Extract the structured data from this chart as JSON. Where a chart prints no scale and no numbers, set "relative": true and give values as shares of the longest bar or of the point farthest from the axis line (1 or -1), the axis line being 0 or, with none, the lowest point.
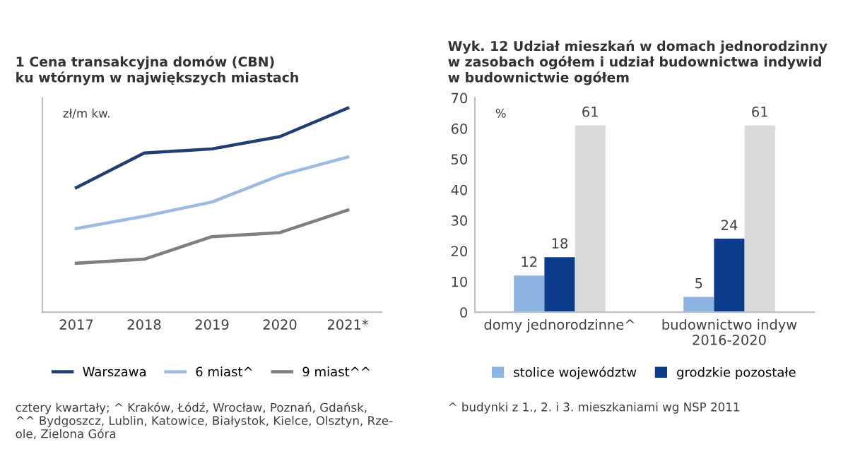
{
  "chart_data": [
    {
      "type": "line",
      "title": "1 Cena transakcyjna domów (CBN)\nku wtórnym w największych miastach",
      "categories": [
        "2017",
        "2018",
        "2019",
        "2020",
        "2021*"
      ],
      "relative": true,
      "series": [
        {
          "name": "Warszawa",
          "color": "#1f3f73",
          "values": [
            0.61,
            0.78,
            0.8,
            0.86,
            1.0
          ]
        },
        {
          "name": "6 miast^",
          "color": "#9dbbe0",
          "values": [
            0.41,
            0.47,
            0.54,
            0.67,
            0.76
          ]
        },
        {
          "name": "9 miast^^",
          "color": "#7f7f7f",
          "values": [
            0.24,
            0.26,
            0.37,
            0.39,
            0.5
          ]
        }
      ],
      "legend": "bottom",
      "grid": false,
      "marker": "none",
      "line_style": "solid",
      "annotations": [
        "zł/m kw.",
        "cztery kwartały; ^ Kraków, Łódź, Wrocław, Poznań, Gdańsk,\n^^ Bydgoszcz, Lublin, Katowice, Białystok, Kielce, Olsztyn, Rze-\nole, Zielona Góra"
      ]
    },
    {
      "type": "bar",
      "title": "Wyk. 12 Udział mieszkań w domach jednorodzinny\nw zasobach ogółem i udział budownictwa indywid\nw budownictwie ogółem",
      "categories": [
        "domy jednorodzinne^",
        "budownictwo indyw\n2016-2020"
      ],
      "series": [
        {
          "name": "stolice województw",
          "color": "#8db4e2",
          "values": [
            12,
            5
          ]
        },
        {
          "name": "grodzkie pozostałe",
          "color": "#0b3d8c",
          "values": [
            18,
            24
          ]
        },
        {
          "color": "#d9d9d9",
          "values": [
            61,
            61
          ]
        }
      ],
      "ylim": [
        0,
        70
      ],
      "yticks": [
        0,
        10,
        20,
        30,
        40,
        50,
        60,
        70
      ],
      "data_labels": true,
      "legend": "bottom",
      "grid": false,
      "annotations": [
        "%",
        "^ budynki z 1., 2. i 3. mieszkaniami wg NSP 2011"
      ]
    }
  ]
}
